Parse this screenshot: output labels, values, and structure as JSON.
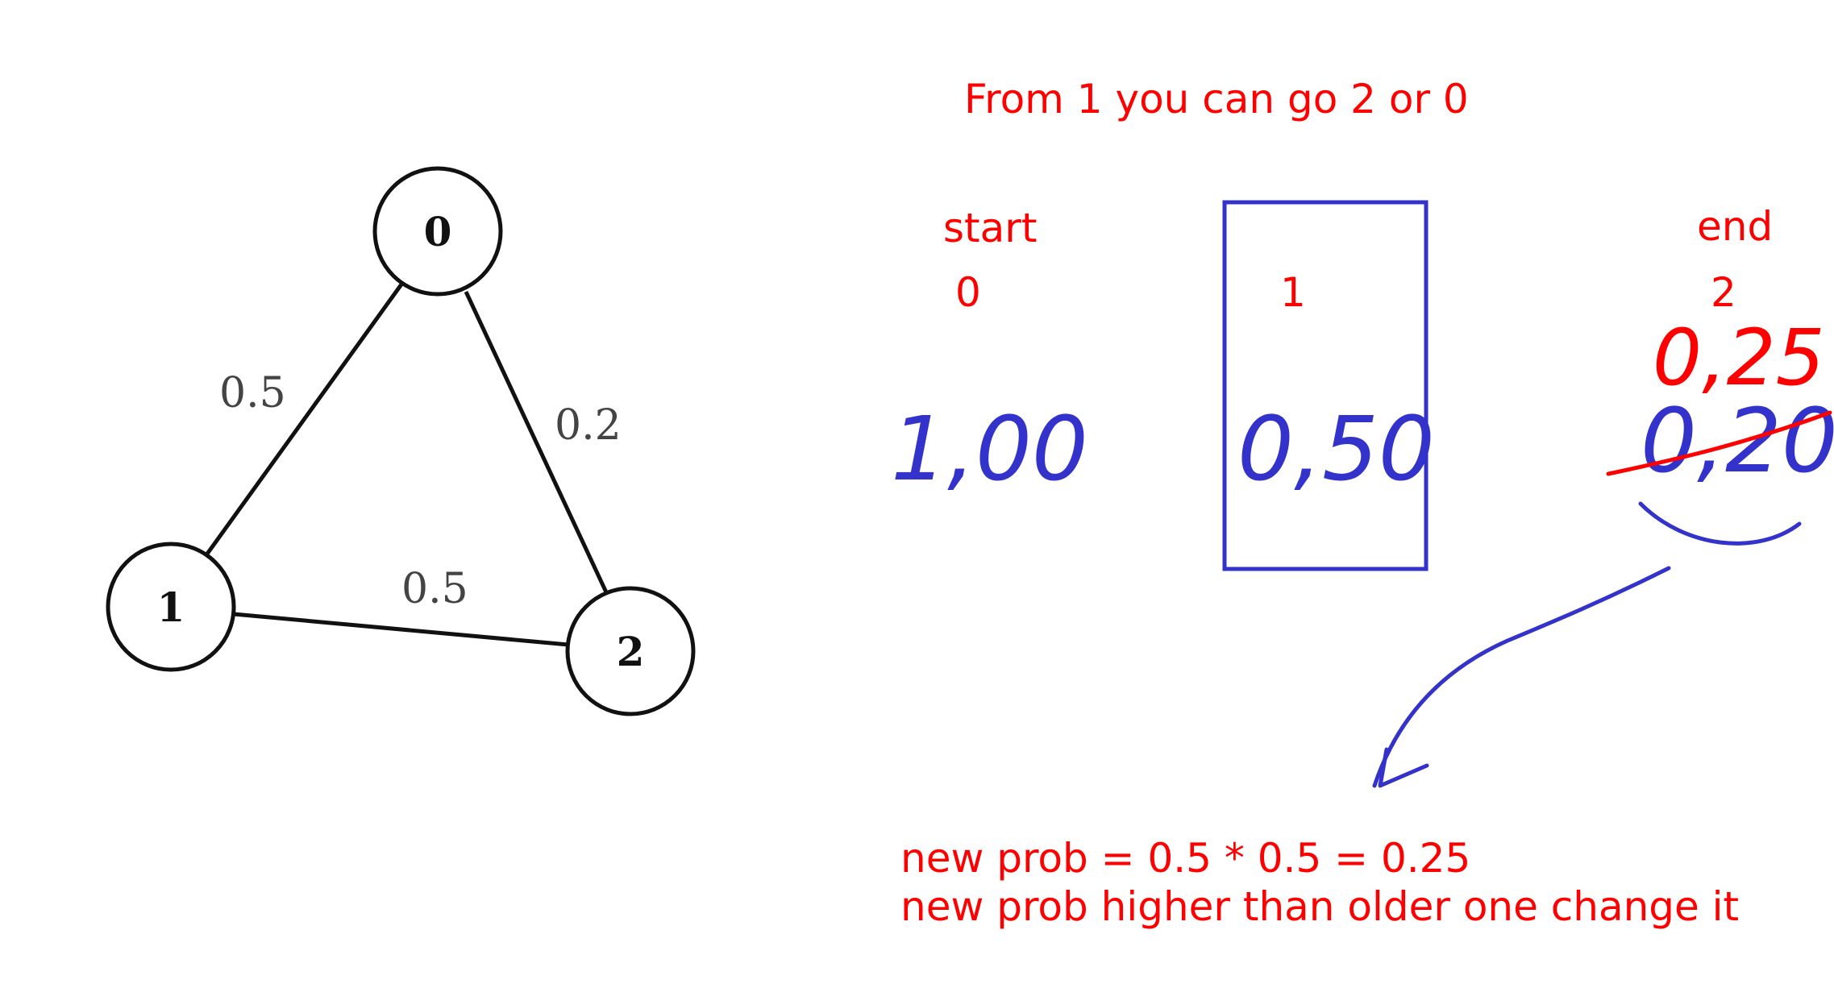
{
  "graph": {
    "nodes": [
      {
        "id": "0",
        "label": "0"
      },
      {
        "id": "1",
        "label": "1"
      },
      {
        "id": "2",
        "label": "2"
      }
    ],
    "edges": [
      {
        "from": "0",
        "to": "1",
        "label": "0.5"
      },
      {
        "from": "0",
        "to": "2",
        "label": "0.2"
      },
      {
        "from": "1",
        "to": "2",
        "label": "0.5"
      }
    ]
  },
  "notes": {
    "heading": "From 1 you can go 2 or 0",
    "start_label": "start",
    "end_label": "end",
    "col0_index": "0",
    "col1_index": "1",
    "col2_index": "2",
    "col0_value": "1,00",
    "col1_value": "0,50",
    "col2_old_value": "0,20",
    "col2_new_value": "0,25",
    "formula_line1": "new prob = 0.5 * 0.5 = 0.25",
    "formula_line2": "new prob higher than older one change it"
  },
  "colors": {
    "annotation_red": "#ff0000",
    "annotation_blue": "#3333cc"
  }
}
